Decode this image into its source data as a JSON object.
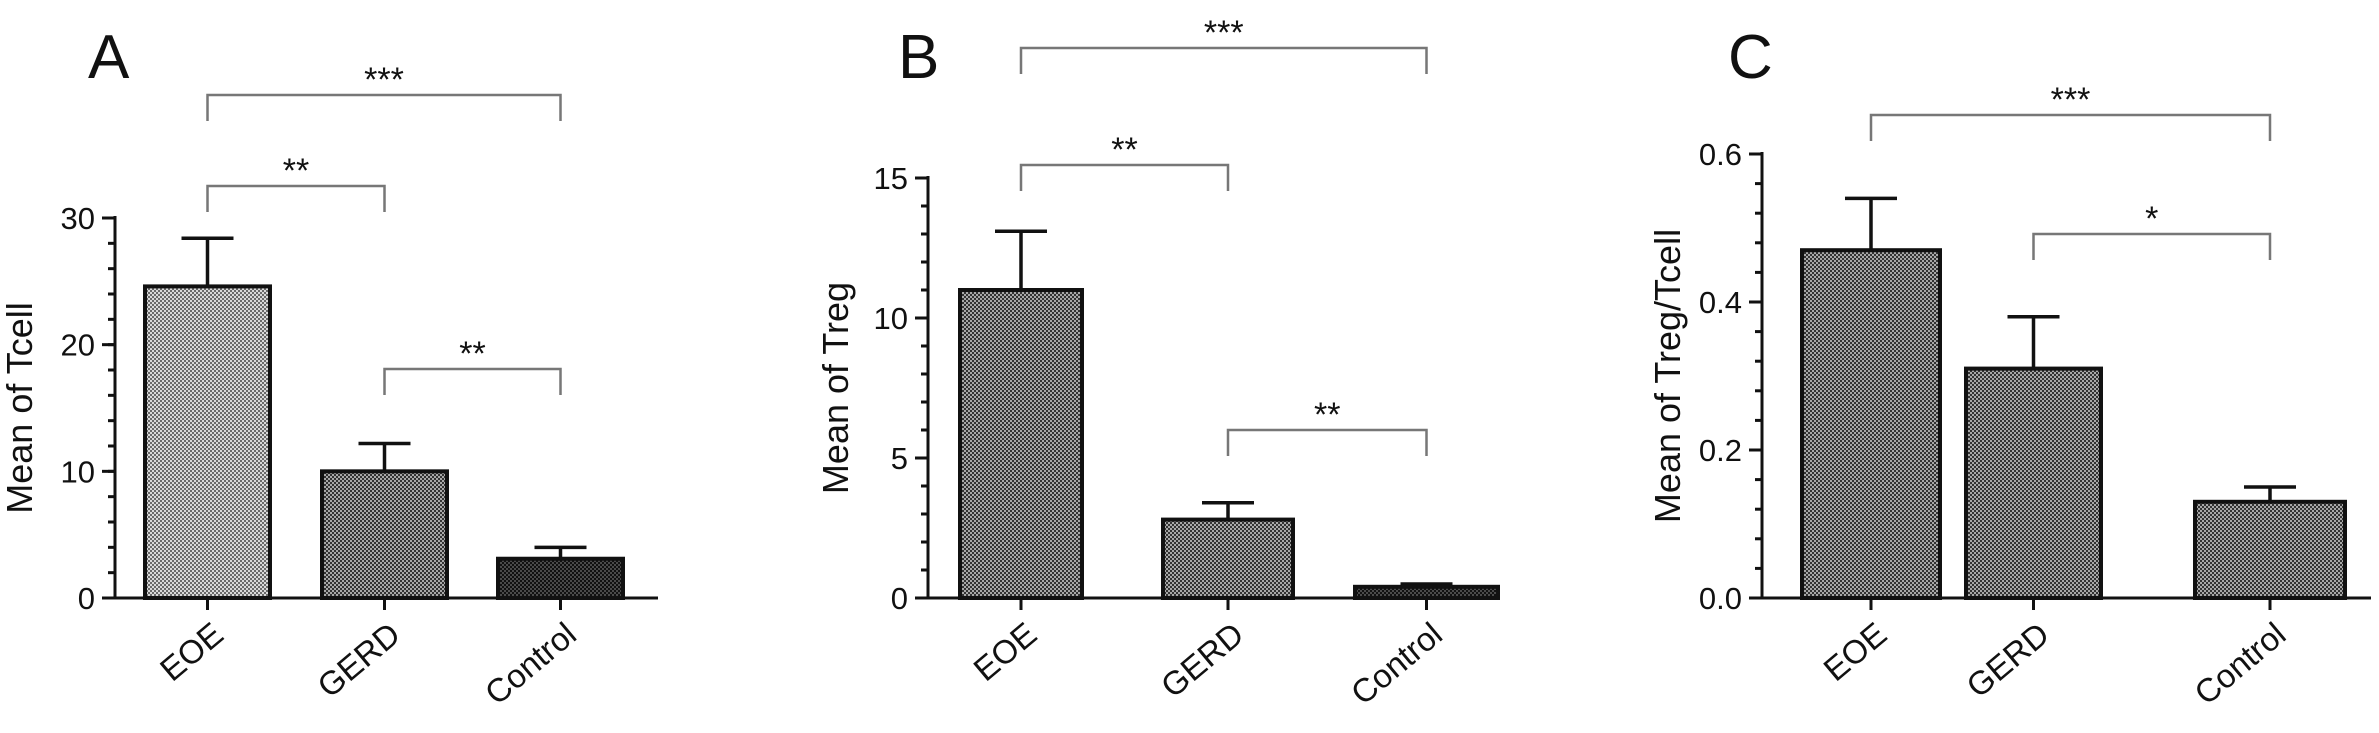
{
  "colors": {
    "ink": "#111111",
    "bracket": "#777777",
    "light_fill": "#b8b8b8",
    "mid_fill": "#6e6e6e",
    "dark_fill": "#2a2a2a"
  },
  "chart_data": [
    {
      "type": "bar",
      "panel": "A",
      "ylabel": "Mean of Tcell",
      "categories": [
        "EOE",
        "GERD",
        "Control"
      ],
      "values": [
        24.6,
        10.0,
        3.1
      ],
      "errors": [
        3.8,
        2.2,
        0.9
      ],
      "ylim": [
        0,
        30
      ],
      "yticks": [
        0,
        10,
        20,
        30
      ],
      "ytick_labels": [
        "0",
        "10",
        "20",
        "30"
      ],
      "fills": [
        "light",
        "mid",
        "dark"
      ],
      "significance": [
        {
          "from": 0,
          "to": 1,
          "label": "**"
        },
        {
          "from": 1,
          "to": 2,
          "label": "**"
        },
        {
          "from": 0,
          "to": 2,
          "label": "***"
        }
      ]
    },
    {
      "type": "bar",
      "panel": "B",
      "ylabel": "Mean of Treg",
      "categories": [
        "EOE",
        "GERD",
        "Control"
      ],
      "values": [
        11.0,
        2.8,
        0.4
      ],
      "errors": [
        2.1,
        0.6,
        0.1
      ],
      "ylim": [
        0,
        15
      ],
      "yticks": [
        0,
        5,
        10,
        15
      ],
      "ytick_labels": [
        "0",
        "5",
        "10",
        "15"
      ],
      "fills": [
        "mid",
        "mid",
        "dark"
      ],
      "significance": [
        {
          "from": 0,
          "to": 1,
          "label": "**"
        },
        {
          "from": 1,
          "to": 2,
          "label": "**"
        },
        {
          "from": 0,
          "to": 2,
          "label": "***"
        }
      ]
    },
    {
      "type": "bar",
      "panel": "C",
      "ylabel": "Mean of Treg/Tcell",
      "categories": [
        "EOE",
        "GERD",
        "Control"
      ],
      "values": [
        0.47,
        0.31,
        0.13
      ],
      "errors": [
        0.07,
        0.07,
        0.02
      ],
      "ylim": [
        0,
        0.6
      ],
      "yticks": [
        0,
        0.2,
        0.4,
        0.6
      ],
      "ytick_labels": [
        "0.0",
        "0.2",
        "0.4",
        "0.6"
      ],
      "fills": [
        "mid",
        "mid",
        "mid"
      ],
      "significance": [
        {
          "from": 1,
          "to": 2,
          "label": "*"
        },
        {
          "from": 0,
          "to": 2,
          "label": "***"
        }
      ]
    }
  ]
}
